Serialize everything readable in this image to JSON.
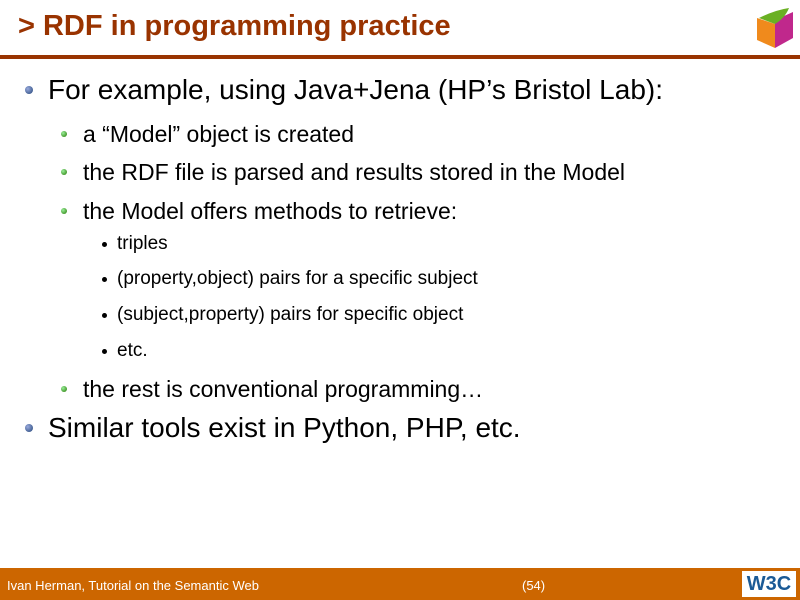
{
  "title": "> RDF in programming practice",
  "items": [
    {
      "level": 1,
      "text": "For example, using Java+Jena (HP’s Bristol Lab):"
    },
    {
      "level": 2,
      "text": "a “Model” object is created"
    },
    {
      "level": 2,
      "text": "the RDF file is parsed and results stored in the Model"
    },
    {
      "level": 2,
      "text": "the Model offers methods to retrieve:"
    },
    {
      "level": 3,
      "text": "triples"
    },
    {
      "level": 3,
      "text": "(property,object) pairs for a specific subject"
    },
    {
      "level": 3,
      "text": "(subject,property) pairs for specific object"
    },
    {
      "level": 3,
      "text": "etc."
    },
    {
      "level": 2,
      "text": "the rest is conventional programming…"
    },
    {
      "level": 1,
      "text": "Similar tools exist in Python, PHP, etc."
    }
  ],
  "footer": {
    "author": "Ivan Herman, Tutorial on the Semantic Web",
    "page": "(54)",
    "logo": "W3C"
  },
  "colors": {
    "title": "#993300",
    "footer": "#cc6600"
  }
}
